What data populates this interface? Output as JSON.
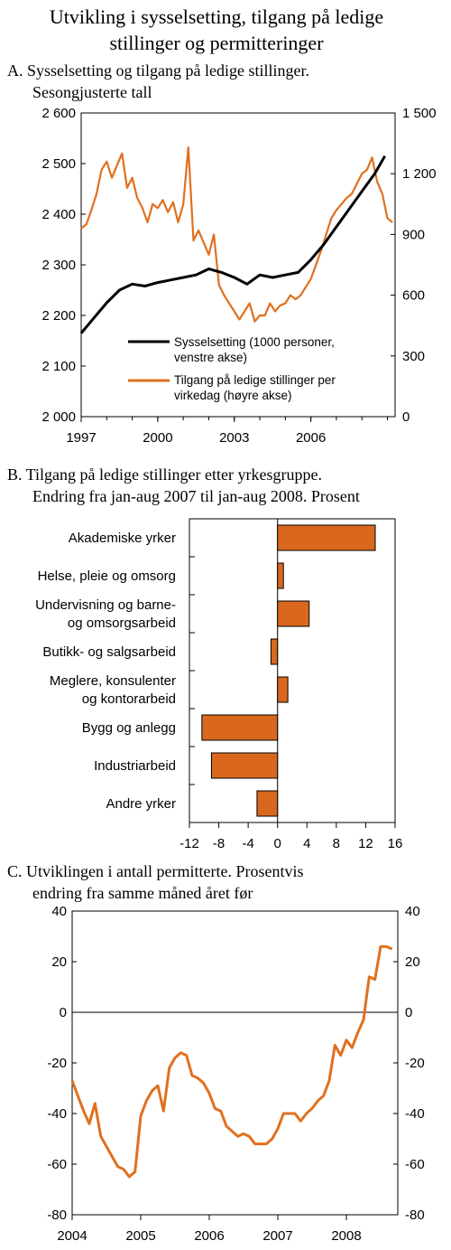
{
  "figure_title_line1": "Utvikling i sysselsetting, tilgang på ledige",
  "figure_title_line2": "stillinger og permitteringer",
  "colors": {
    "orange": "#e07020",
    "black": "#000000",
    "bar_fill": "#d9681e"
  },
  "chart_data": [
    {
      "id": "A",
      "type": "line",
      "title_line1": "A.  Sysselsetting og tilgang på ledige stillinger.",
      "title_line2": "Sesongjusterte tall",
      "x_tick_labels": [
        "1997",
        "2000",
        "2003",
        "2006"
      ],
      "x_ticks": [
        1997,
        2000,
        2003,
        2006
      ],
      "xlim": [
        1997,
        2009.3
      ],
      "ylim_left": [
        2000,
        2600
      ],
      "ylim_right": [
        0,
        1500
      ],
      "yticks_left": [
        "2 000",
        "2 100",
        "2 200",
        "2 300",
        "2 400",
        "2 500",
        "2 600"
      ],
      "yticks_right": [
        "0",
        "300",
        "600",
        "900",
        "1 200",
        "1 500"
      ],
      "legend_position": "lower-right",
      "series": [
        {
          "name": "Sysselsetting (1000 personer, venstre akse)",
          "legend_line1": "Sysselsetting (1000 personer,",
          "legend_line2": "venstre akse)",
          "axis": "left",
          "color": "#000000",
          "x": [
            1997.0,
            1997.5,
            1998.0,
            1998.5,
            1999.0,
            1999.5,
            2000.0,
            2000.5,
            2001.0,
            2001.5,
            2002.0,
            2002.5,
            2003.0,
            2003.5,
            2004.0,
            2004.5,
            2005.0,
            2005.5,
            2006.0,
            2006.5,
            2007.0,
            2007.5,
            2008.0,
            2008.5,
            2008.9
          ],
          "y": [
            2165,
            2195,
            2225,
            2250,
            2262,
            2258,
            2265,
            2270,
            2275,
            2280,
            2292,
            2285,
            2275,
            2262,
            2280,
            2275,
            2280,
            2285,
            2310,
            2340,
            2375,
            2410,
            2445,
            2480,
            2515
          ]
        },
        {
          "name": "Tilgang på ledige stillinger per virkedag (høyre akse)",
          "legend_line1": "Tilgang på ledige stillinger per",
          "legend_line2": "virkedag (høyre akse)",
          "axis": "right",
          "color": "#e07020",
          "x": [
            1997.0,
            1997.2,
            1997.4,
            1997.6,
            1997.8,
            1998.0,
            1998.2,
            1998.4,
            1998.6,
            1998.8,
            1999.0,
            1999.2,
            1999.4,
            1999.6,
            1999.8,
            2000.0,
            2000.2,
            2000.4,
            2000.6,
            2000.8,
            2001.0,
            2001.2,
            2001.4,
            2001.6,
            2001.8,
            2002.0,
            2002.2,
            2002.4,
            2002.6,
            2002.8,
            2003.0,
            2003.2,
            2003.4,
            2003.6,
            2003.8,
            2004.0,
            2004.2,
            2004.4,
            2004.6,
            2004.8,
            2005.0,
            2005.2,
            2005.4,
            2005.6,
            2005.8,
            2006.0,
            2006.2,
            2006.4,
            2006.6,
            2006.8,
            2007.0,
            2007.2,
            2007.4,
            2007.6,
            2007.8,
            2008.0,
            2008.2,
            2008.4,
            2008.6,
            2008.8,
            2009.0,
            2009.2
          ],
          "y": [
            930,
            950,
            1020,
            1100,
            1220,
            1260,
            1180,
            1240,
            1300,
            1130,
            1180,
            1080,
            1030,
            960,
            1050,
            1030,
            1070,
            1010,
            1060,
            960,
            1050,
            1330,
            870,
            920,
            860,
            800,
            900,
            650,
            600,
            560,
            520,
            480,
            520,
            560,
            470,
            500,
            500,
            560,
            520,
            550,
            560,
            600,
            580,
            600,
            640,
            680,
            750,
            820,
            900,
            980,
            1020,
            1050,
            1080,
            1100,
            1150,
            1200,
            1220,
            1280,
            1160,
            1100,
            980,
            960
          ]
        }
      ]
    },
    {
      "id": "B",
      "type": "bar",
      "orientation": "horizontal",
      "title_line1": "B.  Tilgang på ledige stillinger etter yrkesgruppe.",
      "title_line2": "Endring fra jan-aug 2007 til jan-aug 2008. Prosent",
      "categories": [
        [
          "Akademiske yrker"
        ],
        [
          "Helse, pleie og omsorg"
        ],
        [
          "Undervisning og barne-",
          "og omsorgsarbeid"
        ],
        [
          "Butikk- og salgsarbeid"
        ],
        [
          "Meglere, konsulenter",
          "og kontorarbeid"
        ],
        [
          "Bygg og anlegg"
        ],
        [
          "Industriarbeid"
        ],
        [
          "Andre yrker"
        ]
      ],
      "values": [
        13.3,
        0.8,
        4.3,
        -0.9,
        1.4,
        -10.3,
        -9.0,
        -2.8
      ],
      "xlim": [
        -12,
        16
      ],
      "x_tick_labels": [
        "-12",
        "-8",
        "-4",
        "0",
        "4",
        "8",
        "12",
        "16"
      ],
      "x_ticks": [
        -12,
        -8,
        -4,
        0,
        4,
        8,
        12,
        16
      ]
    },
    {
      "id": "C",
      "type": "line",
      "title_line1": "C.  Utviklingen i antall permitterte. Prosentvis",
      "title_line2": "endring fra samme måned året før",
      "x_tick_labels": [
        "2004",
        "2005",
        "2006",
        "2007",
        "2008"
      ],
      "x_ticks": [
        2004,
        2005,
        2006,
        2007,
        2008
      ],
      "xlim": [
        2004,
        2008.75
      ],
      "ylim": [
        -80,
        40
      ],
      "ytick_labels": [
        "-80",
        "-60",
        "-40",
        "-20",
        "0",
        "20",
        "40"
      ],
      "yticks": [
        -80,
        -60,
        -40,
        -20,
        0,
        20,
        40
      ],
      "series": [
        {
          "color": "#e07020",
          "x": [
            2004.0,
            2004.083,
            2004.167,
            2004.25,
            2004.333,
            2004.417,
            2004.5,
            2004.583,
            2004.667,
            2004.75,
            2004.833,
            2004.917,
            2005.0,
            2005.083,
            2005.167,
            2005.25,
            2005.333,
            2005.417,
            2005.5,
            2005.583,
            2005.667,
            2005.75,
            2005.833,
            2005.917,
            2006.0,
            2006.083,
            2006.167,
            2006.25,
            2006.333,
            2006.417,
            2006.5,
            2006.583,
            2006.667,
            2006.75,
            2006.833,
            2006.917,
            2007.0,
            2007.083,
            2007.167,
            2007.25,
            2007.333,
            2007.417,
            2007.5,
            2007.583,
            2007.667,
            2007.75,
            2007.833,
            2007.917,
            2008.0,
            2008.083,
            2008.167,
            2008.25,
            2008.333,
            2008.417,
            2008.5,
            2008.583,
            2008.667
          ],
          "y": [
            -27,
            -33,
            -39,
            -44,
            -36,
            -49,
            -53,
            -57,
            -61,
            -62,
            -65,
            -63,
            -41,
            -35,
            -31,
            -29,
            -39,
            -22,
            -18,
            -16,
            -17,
            -25,
            -26,
            -28,
            -32,
            -38,
            -39,
            -45,
            -47,
            -49,
            -48,
            -49,
            -52,
            -52,
            -52,
            -50,
            -46,
            -40,
            -40,
            -40,
            -43,
            -40,
            -38,
            -35,
            -33,
            -27,
            -13,
            -17,
            -11,
            -14,
            -8,
            -3,
            14,
            13,
            26,
            26,
            25
          ]
        }
      ]
    }
  ]
}
